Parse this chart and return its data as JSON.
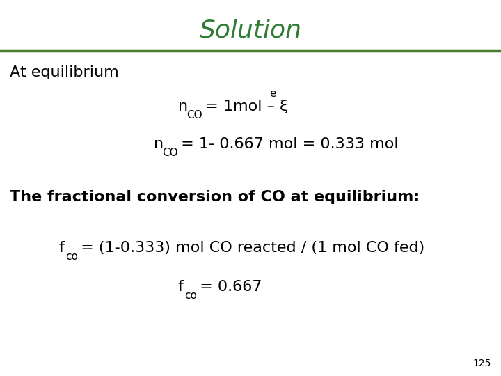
{
  "title": "Solution",
  "title_color": "#2e7d32",
  "title_fontsize": 26,
  "bg_color": "#ffffff",
  "line_color": "#4a7c2f",
  "page_number": "125",
  "text_color": "#000000",
  "at_equilibrium": "At equilibrium",
  "line1_rest": " = 1mol – ξ",
  "line1_sup": "e",
  "line2_rest": " = 1- 0.667 mol = 0.333 mol",
  "bold_line": "The fractional conversion of CO at equilibrium:",
  "fco_line1_rest": " = (1-0.333) mol CO reacted / (1 mol CO fed)",
  "fco_line2_rest": " = 0.667"
}
